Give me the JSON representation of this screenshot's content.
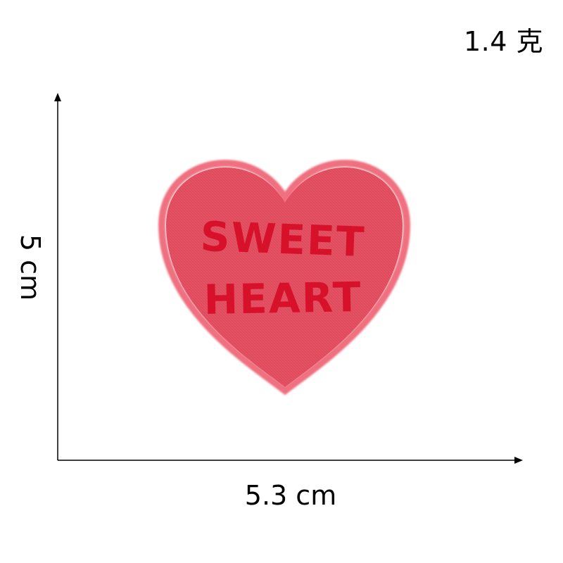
{
  "weight": "1.4 克",
  "dimensions": {
    "height": "5 cm",
    "width": "5.3 cm"
  },
  "patch": {
    "line1": "SWEET",
    "line2": "HEART",
    "fill_color": "#e04a5c",
    "edge_color": "#ef6f7f",
    "text_color": "#d8112a"
  }
}
